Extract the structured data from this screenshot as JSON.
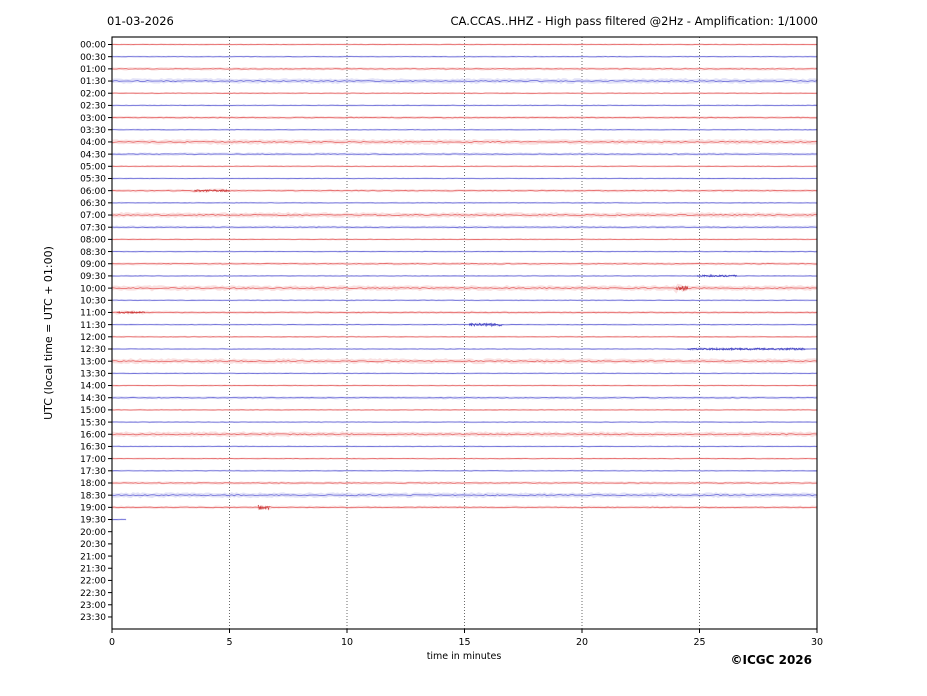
{
  "header": {
    "date": "01-03-2026",
    "title": "CA.CCAS..HHZ - High pass filtered @2Hz - Amplification: 1/1000"
  },
  "footer": {
    "credit": "©ICGC 2026"
  },
  "chart_data": {
    "type": "line",
    "subtype": "helicorder-daily-seismogram",
    "date_label": "01-03-2026",
    "title": "CA.CCAS..HHZ - High pass filtered @2Hz - Amplification: 1/1000",
    "xlabel": "time in minutes",
    "ylabel": "UTC (local time = UTC + 01:00)",
    "xlim": [
      0,
      30
    ],
    "x_ticks": [
      0,
      5,
      10,
      15,
      20,
      25,
      30
    ],
    "grid_minutes": [
      5,
      10,
      15,
      20,
      25
    ],
    "row_interval_minutes": 30,
    "grid_on": true,
    "colors": {
      "hour_trace": "#e66a6a",
      "hour_halo": "#f6c2c2",
      "half_hour_trace": "#7070d8",
      "half_hour_halo": "#c6c6f1",
      "event_red": "#c93232",
      "event_blue": "#3d3dc0",
      "grid": "#5a5a5a",
      "axis": "#000000"
    },
    "rows": [
      {
        "time": "00:00",
        "color": "red",
        "noise": "low",
        "span": [
          0,
          30
        ]
      },
      {
        "time": "00:30",
        "color": "blue",
        "noise": "low",
        "span": [
          0,
          30
        ]
      },
      {
        "time": "01:00",
        "color": "red",
        "noise": "med",
        "span": [
          0,
          30
        ]
      },
      {
        "time": "01:30",
        "color": "blue",
        "noise": "high",
        "span": [
          0,
          30
        ]
      },
      {
        "time": "02:00",
        "color": "red",
        "noise": "low",
        "span": [
          0,
          30
        ]
      },
      {
        "time": "02:30",
        "color": "blue",
        "noise": "low",
        "span": [
          0,
          30
        ]
      },
      {
        "time": "03:00",
        "color": "red",
        "noise": "med",
        "span": [
          0,
          30
        ]
      },
      {
        "time": "03:30",
        "color": "blue",
        "noise": "low",
        "span": [
          0,
          30
        ]
      },
      {
        "time": "04:00",
        "color": "red",
        "noise": "high",
        "span": [
          0,
          30
        ]
      },
      {
        "time": "04:30",
        "color": "blue",
        "noise": "med",
        "span": [
          0,
          30
        ]
      },
      {
        "time": "05:00",
        "color": "red",
        "noise": "low",
        "span": [
          0,
          30
        ]
      },
      {
        "time": "05:30",
        "color": "blue",
        "noise": "low",
        "span": [
          0,
          30
        ]
      },
      {
        "time": "06:00",
        "color": "red",
        "noise": "med",
        "span": [
          0,
          30
        ]
      },
      {
        "time": "06:30",
        "color": "blue",
        "noise": "low",
        "span": [
          0,
          30
        ]
      },
      {
        "time": "07:00",
        "color": "red",
        "noise": "high",
        "span": [
          0,
          30
        ]
      },
      {
        "time": "07:30",
        "color": "blue",
        "noise": "med",
        "span": [
          0,
          30
        ]
      },
      {
        "time": "08:00",
        "color": "red",
        "noise": "low",
        "span": [
          0,
          30
        ]
      },
      {
        "time": "08:30",
        "color": "blue",
        "noise": "low",
        "span": [
          0,
          30
        ]
      },
      {
        "time": "09:00",
        "color": "red",
        "noise": "med",
        "span": [
          0,
          30
        ]
      },
      {
        "time": "09:30",
        "color": "blue",
        "noise": "low",
        "span": [
          0,
          30
        ]
      },
      {
        "time": "10:00",
        "color": "red",
        "noise": "high",
        "span": [
          0,
          30
        ]
      },
      {
        "time": "10:30",
        "color": "blue",
        "noise": "low",
        "span": [
          0,
          30
        ]
      },
      {
        "time": "11:00",
        "color": "red",
        "noise": "med",
        "span": [
          0,
          30
        ]
      },
      {
        "time": "11:30",
        "color": "blue",
        "noise": "low",
        "span": [
          0,
          30
        ]
      },
      {
        "time": "12:00",
        "color": "red",
        "noise": "low",
        "span": [
          0,
          30
        ]
      },
      {
        "time": "12:30",
        "color": "blue",
        "noise": "low",
        "span": [
          0,
          30
        ]
      },
      {
        "time": "13:00",
        "color": "red",
        "noise": "high",
        "span": [
          0,
          30
        ]
      },
      {
        "time": "13:30",
        "color": "blue",
        "noise": "low",
        "span": [
          0,
          30
        ]
      },
      {
        "time": "14:00",
        "color": "red",
        "noise": "low",
        "span": [
          0,
          30
        ]
      },
      {
        "time": "14:30",
        "color": "blue",
        "noise": "med",
        "span": [
          0,
          30
        ]
      },
      {
        "time": "15:00",
        "color": "red",
        "noise": "low",
        "span": [
          0,
          30
        ]
      },
      {
        "time": "15:30",
        "color": "blue",
        "noise": "low",
        "span": [
          0,
          30
        ]
      },
      {
        "time": "16:00",
        "color": "red",
        "noise": "high",
        "span": [
          0,
          30
        ]
      },
      {
        "time": "16:30",
        "color": "blue",
        "noise": "low",
        "span": [
          0,
          30
        ]
      },
      {
        "time": "17:00",
        "color": "red",
        "noise": "low",
        "span": [
          0,
          30
        ]
      },
      {
        "time": "17:30",
        "color": "blue",
        "noise": "low",
        "span": [
          0,
          30
        ]
      },
      {
        "time": "18:00",
        "color": "red",
        "noise": "med",
        "span": [
          0,
          30
        ]
      },
      {
        "time": "18:30",
        "color": "blue",
        "noise": "high",
        "span": [
          0,
          30
        ]
      },
      {
        "time": "19:00",
        "color": "red",
        "noise": "med",
        "span": [
          0,
          30
        ]
      },
      {
        "time": "19:30",
        "color": "blue",
        "noise": "low",
        "span": [
          0,
          0.6
        ]
      },
      {
        "time": "20:00",
        "color": "red",
        "noise": "low",
        "span": null
      },
      {
        "time": "20:30",
        "color": "blue",
        "noise": "low",
        "span": null
      },
      {
        "time": "21:00",
        "color": "red",
        "noise": "low",
        "span": null
      },
      {
        "time": "21:30",
        "color": "blue",
        "noise": "low",
        "span": null
      },
      {
        "time": "22:00",
        "color": "red",
        "noise": "low",
        "span": null
      },
      {
        "time": "22:30",
        "color": "blue",
        "noise": "low",
        "span": null
      },
      {
        "time": "23:00",
        "color": "red",
        "noise": "low",
        "span": null
      },
      {
        "time": "23:30",
        "color": "blue",
        "noise": "low",
        "span": null
      }
    ],
    "events": [
      {
        "time": "06:00",
        "start": 3.5,
        "end": 5.0,
        "amp": 0.9
      },
      {
        "time": "09:30",
        "start": 24.9,
        "end": 26.6,
        "amp": 0.9
      },
      {
        "time": "10:00",
        "start": 24.0,
        "end": 24.5,
        "amp": 2.4
      },
      {
        "time": "11:00",
        "start": 0.2,
        "end": 1.4,
        "amp": 0.8
      },
      {
        "time": "11:30",
        "start": 15.2,
        "end": 16.6,
        "amp": 1.5
      },
      {
        "time": "12:30",
        "start": 24.5,
        "end": 29.5,
        "amp": 0.9
      },
      {
        "time": "19:00",
        "start": 6.2,
        "end": 6.7,
        "amp": 2.0
      }
    ]
  }
}
